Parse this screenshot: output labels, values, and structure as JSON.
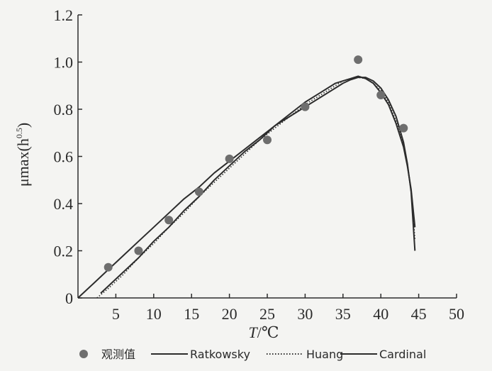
{
  "chart_data": {
    "type": "scatter",
    "xlabel_italic": "T",
    "xlabel_unit": "/℃",
    "ylabel_main": "μmax(h",
    "ylabel_sup": "0.5",
    "ylabel_close": ")",
    "xlim": [
      0,
      50
    ],
    "ylim": [
      0,
      1.2
    ],
    "xticks": [
      5,
      10,
      15,
      20,
      25,
      30,
      35,
      40,
      45,
      50
    ],
    "yticks": [
      0,
      0.2,
      0.4,
      0.6,
      0.8,
      1.0,
      1.2
    ],
    "ytick_labels": [
      "0",
      "0.2",
      "0.4",
      "0.6",
      "0.8",
      "1.0",
      "1.2"
    ],
    "observed": {
      "name": "观测值",
      "color": "#6e6e6e",
      "x": [
        4,
        8,
        12,
        16,
        20,
        25,
        30,
        37,
        40,
        43
      ],
      "y": [
        0.13,
        0.2,
        0.33,
        0.45,
        0.59,
        0.67,
        0.81,
        1.01,
        0.86,
        0.72
      ]
    },
    "series": [
      {
        "name": "Ratkowsky",
        "style": "solid",
        "x": [
          3.0,
          4,
          6,
          8,
          10,
          12,
          14,
          16,
          18,
          20,
          22,
          24,
          26,
          28,
          30,
          32,
          34,
          35,
          36,
          37,
          38,
          39,
          40,
          41,
          42,
          43,
          43.5,
          44,
          44.5
        ],
        "y": [
          0.02,
          0.05,
          0.11,
          0.17,
          0.24,
          0.3,
          0.37,
          0.43,
          0.5,
          0.56,
          0.62,
          0.67,
          0.73,
          0.78,
          0.83,
          0.87,
          0.91,
          0.92,
          0.93,
          0.94,
          0.93,
          0.91,
          0.87,
          0.82,
          0.74,
          0.64,
          0.56,
          0.46,
          0.3
        ]
      },
      {
        "name": "Huang",
        "style": "dotted",
        "x": [
          2.5,
          4,
          6,
          8,
          10,
          12,
          14,
          16,
          18,
          20,
          22,
          24,
          26,
          28,
          30,
          32,
          34,
          35,
          36,
          37,
          38,
          39,
          40,
          41,
          42,
          43,
          43.5,
          44,
          44.5
        ],
        "y": [
          0.0,
          0.04,
          0.1,
          0.17,
          0.23,
          0.3,
          0.36,
          0.43,
          0.49,
          0.55,
          0.61,
          0.67,
          0.72,
          0.77,
          0.82,
          0.86,
          0.9,
          0.92,
          0.93,
          0.935,
          0.93,
          0.91,
          0.88,
          0.83,
          0.75,
          0.65,
          0.57,
          0.45,
          0.25
        ]
      },
      {
        "name": "Cardinal",
        "style": "solid",
        "x": [
          0,
          2,
          4,
          6,
          8,
          10,
          12,
          14,
          16,
          18,
          20,
          22,
          24,
          26,
          28,
          30,
          32,
          34,
          35,
          36,
          37,
          38,
          39,
          40,
          41,
          42,
          43,
          43.5,
          44,
          44.5
        ],
        "y": [
          0.0,
          0.06,
          0.12,
          0.18,
          0.24,
          0.3,
          0.36,
          0.42,
          0.47,
          0.53,
          0.58,
          0.63,
          0.68,
          0.73,
          0.77,
          0.81,
          0.85,
          0.89,
          0.91,
          0.925,
          0.935,
          0.935,
          0.92,
          0.89,
          0.84,
          0.77,
          0.66,
          0.57,
          0.45,
          0.2
        ]
      }
    ],
    "line_color": "#2c2c2c"
  }
}
